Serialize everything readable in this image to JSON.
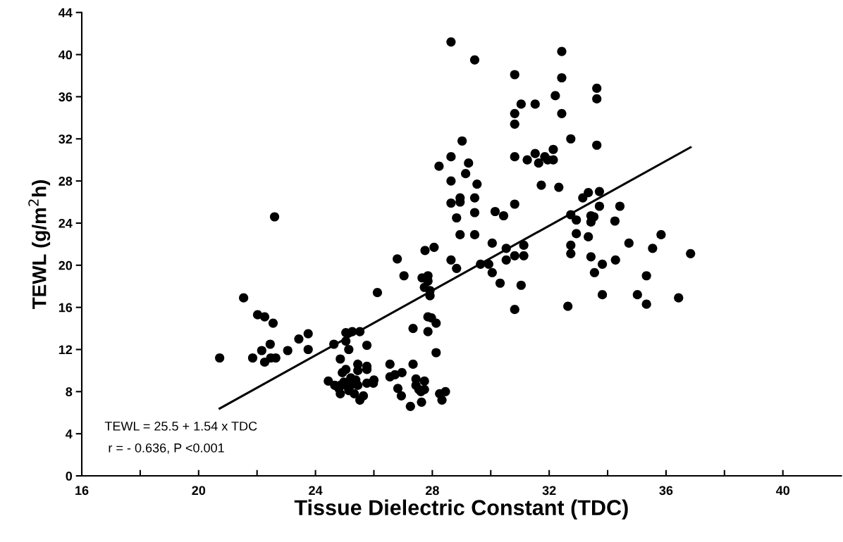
{
  "chart_data": {
    "type": "scatter",
    "xlabel": "Tissue Dielectric Constant (TDC)",
    "ylabel": "TEWL (g/m$^{2}$h)",
    "xlim": [
      16,
      42
    ],
    "ylim": [
      0,
      44
    ],
    "xticks": [
      16,
      {
        "value": 18,
        "label": null
      },
      20,
      {
        "value": 22,
        "label": null
      },
      24,
      {
        "value": 26,
        "label": null
      },
      28,
      {
        "value": 30,
        "label": null
      },
      32,
      {
        "value": 34,
        "label": null
      },
      36,
      {
        "value": 38,
        "label": null
      },
      40
    ],
    "yticks": [
      0,
      4,
      8,
      12,
      16,
      20,
      24,
      28,
      32,
      36,
      40,
      44
    ],
    "grid": false,
    "legend": false,
    "annotations": [
      "TEWL = 25.5 + 1.54 x TDC",
      " r = - 0.636, P <0.001"
    ],
    "series": [
      {
        "marker": "circle",
        "color": "#000000",
        "x": [
          20.72,
          21.54,
          22.02,
          22.26,
          22.55,
          21.85,
          22.16,
          22.45,
          22.26,
          22.47,
          22.64,
          23.05,
          23.43,
          23.75,
          23.75,
          22.6,
          24.63,
          25.04,
          25.26,
          25.52,
          25.04,
          25.14,
          25.76,
          26.12,
          27.03,
          26.55,
          24.85,
          25.45,
          25.76,
          25.76,
          25.45,
          25.04,
          24.92,
          24.44,
          24.66,
          24.85,
          24.97,
          25.21,
          25.38,
          25.45,
          25.21,
          25.04,
          24.8,
          24.85,
          25.14,
          25.33,
          25.52,
          25.64,
          25.76,
          26.0,
          25.98,
          26.55,
          26.72,
          26.96,
          26.82,
          26.94,
          27.25,
          26.8,
          27.65,
          27.85,
          27.85,
          27.73,
          27.92,
          27.92,
          27.85,
          27.97,
          28.13,
          27.34,
          27.85,
          28.13,
          27.34,
          27.44,
          27.44,
          27.54,
          27.73,
          27.73,
          27.61,
          27.63,
          28.25,
          28.45,
          28.33,
          27.75,
          28.06,
          28.64,
          28.83,
          28.64,
          29.45,
          30.82,
          32.43,
          32.43,
          31.04,
          31.52,
          30.82,
          30.82,
          32.21,
          32.43,
          33.63,
          33.63,
          33.63,
          32.74,
          29.02,
          28.64,
          28.23,
          29.24,
          29.14,
          28.64,
          29.53,
          30.82,
          31.25,
          31.52,
          31.64,
          31.85,
          31.95,
          32.14,
          32.14,
          31.73,
          32.33,
          28.64,
          28.95,
          28.95,
          28.83,
          29.45,
          29.45,
          28.95,
          29.45,
          30.15,
          30.44,
          30.82,
          30.05,
          30.53,
          30.53,
          30.82,
          31.13,
          31.13,
          29.65,
          29.93,
          30.05,
          30.32,
          31.04,
          30.82,
          32.64,
          33.15,
          33.34,
          33.72,
          33.72,
          32.74,
          32.93,
          33.43,
          33.53,
          33.43,
          34.25,
          32.93,
          33.34,
          32.74,
          32.74,
          33.43,
          33.82,
          33.55,
          34.27,
          34.42,
          34.73,
          35.83,
          35.54,
          36.84,
          35.33,
          33.82,
          35.02,
          36.43,
          35.33
        ],
        "values": [
          11.2,
          16.9,
          15.3,
          15.1,
          14.5,
          11.2,
          11.9,
          12.5,
          10.8,
          11.2,
          11.2,
          11.9,
          13.0,
          13.5,
          12.0,
          24.6,
          12.5,
          13.6,
          13.7,
          13.7,
          12.8,
          12.0,
          12.4,
          17.4,
          19.0,
          10.6,
          11.1,
          10.6,
          10.4,
          10.1,
          10.0,
          10.1,
          9.8,
          9.0,
          8.6,
          8.6,
          8.9,
          9.3,
          9.1,
          8.6,
          8.6,
          8.6,
          8.3,
          7.8,
          8.1,
          7.8,
          7.2,
          7.6,
          8.8,
          9.1,
          8.8,
          9.4,
          9.6,
          9.8,
          8.3,
          7.6,
          6.6,
          20.6,
          18.8,
          19.0,
          18.5,
          17.9,
          17.6,
          17.1,
          15.1,
          15.0,
          14.5,
          14.0,
          13.7,
          11.7,
          10.6,
          9.2,
          8.6,
          8.2,
          9.0,
          8.2,
          8.0,
          7.0,
          7.8,
          8.0,
          7.2,
          21.4,
          21.7,
          41.2,
          19.7,
          20.5,
          39.5,
          38.1,
          40.3,
          37.8,
          35.3,
          35.3,
          34.4,
          33.4,
          36.1,
          34.4,
          36.8,
          35.8,
          31.4,
          32.0,
          31.8,
          30.3,
          29.4,
          29.7,
          28.7,
          28.0,
          27.7,
          30.3,
          30.0,
          30.6,
          29.7,
          30.3,
          30.0,
          31.0,
          30.0,
          27.6,
          27.4,
          25.9,
          26.4,
          26.0,
          24.5,
          26.4,
          25.0,
          22.9,
          22.9,
          25.1,
          24.7,
          25.8,
          22.1,
          21.6,
          20.5,
          20.9,
          21.9,
          20.9,
          20.1,
          20.1,
          19.3,
          18.3,
          18.1,
          15.8,
          16.1,
          26.4,
          26.9,
          27.0,
          25.6,
          24.8,
          24.3,
          24.7,
          24.6,
          24.1,
          24.2,
          23.0,
          22.7,
          21.9,
          21.1,
          20.8,
          20.1,
          19.3,
          20.5,
          25.6,
          22.1,
          22.9,
          21.6,
          21.1,
          19.0,
          17.2,
          17.2,
          16.9,
          16.3
        ]
      },
      {
        "type": "line",
        "marker": "none",
        "color": "#000000",
        "x": [
          20.72,
          36.84
        ],
        "values": [
          6.4,
          31.2
        ]
      }
    ]
  }
}
